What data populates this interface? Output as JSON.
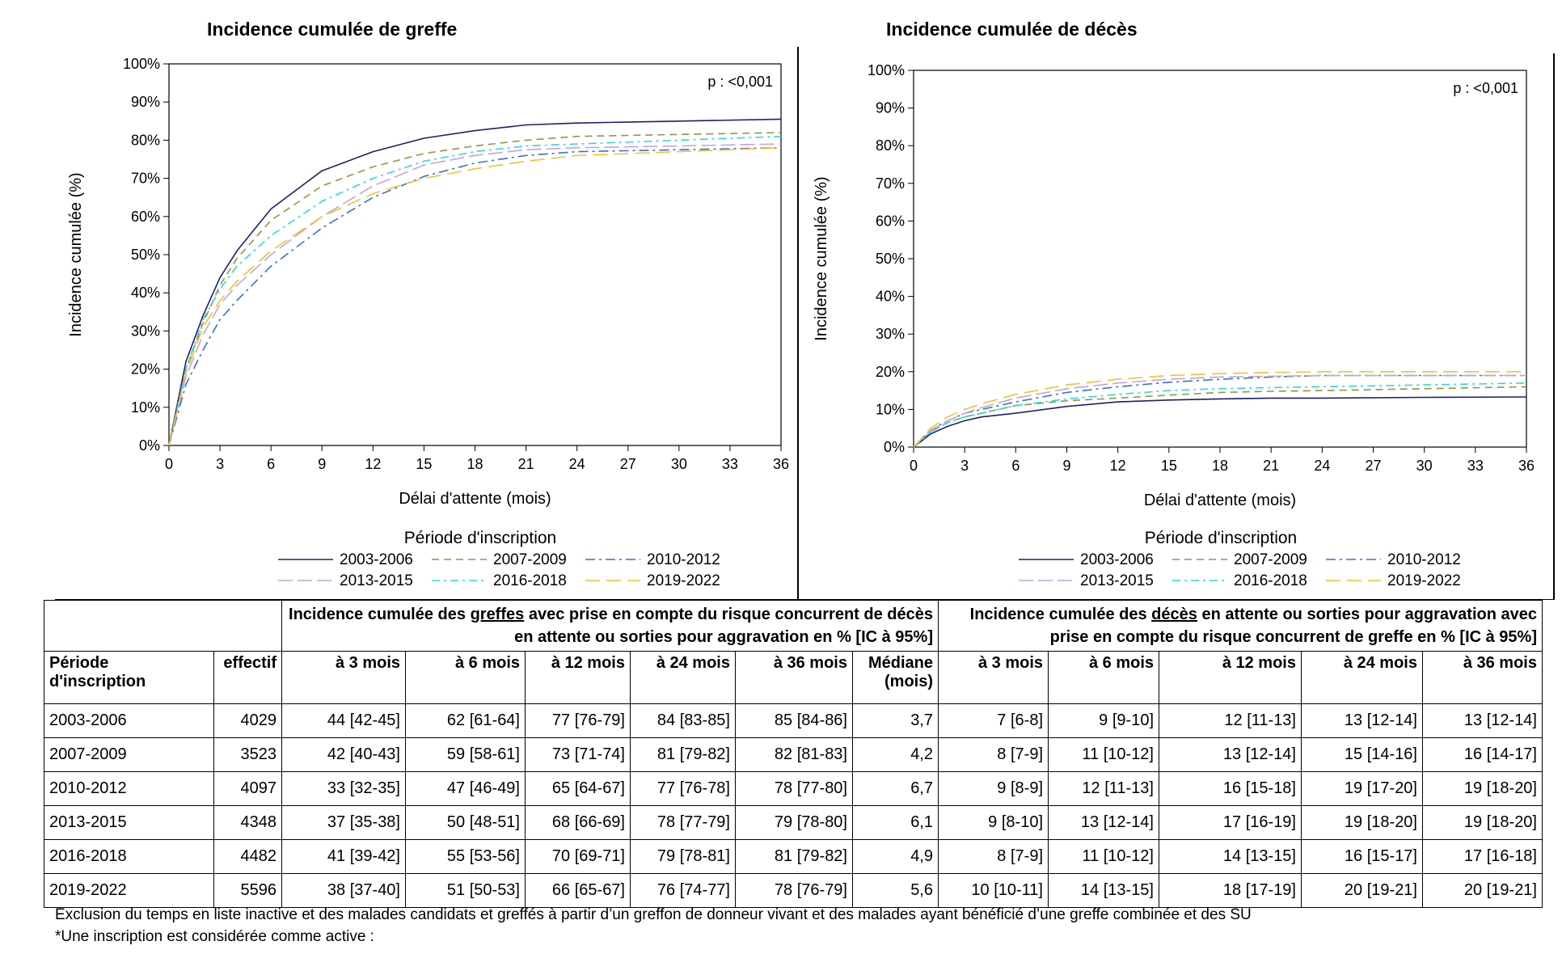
{
  "panels": [
    {
      "id": "greffe",
      "title": "Incidence cumulée de greffe",
      "pvalue": "p : <0,001",
      "ylabel": "Incidence cumulée (%)",
      "xlabel": "Délai d'attente (mois)",
      "legend_title": "Période d'inscription"
    },
    {
      "id": "deces",
      "title": "Incidence cumulée de décès",
      "pvalue": "p : <0,001",
      "ylabel": "Incidence cumulée (%)",
      "xlabel": "Délai d'attente (mois)",
      "legend_title": "Période d'inscription"
    }
  ],
  "chart_data": [
    {
      "type": "line",
      "title": "Incidence cumulée de greffe",
      "xlabel": "Délai d'attente (mois)",
      "ylabel": "Incidence cumulée (%)",
      "xlim": [
        0,
        36
      ],
      "ylim": [
        0,
        100
      ],
      "xticks": [
        "0",
        "3",
        "6",
        "9",
        "12",
        "15",
        "18",
        "21",
        "24",
        "27",
        "30",
        "33",
        "36"
      ],
      "yticks": [
        "0%",
        "10%",
        "20%",
        "30%",
        "40%",
        "50%",
        "60%",
        "70%",
        "80%",
        "90%",
        "100%"
      ],
      "grid": false,
      "legend_placement": "bottom",
      "x": [
        0,
        1,
        2,
        3,
        4,
        6,
        9,
        12,
        15,
        18,
        21,
        24,
        30,
        36
      ],
      "series": [
        {
          "name": "2003-2006",
          "values": [
            0,
            22,
            34,
            44,
            51,
            62,
            72,
            77,
            80.5,
            82.5,
            84,
            84.5,
            85,
            85.5
          ]
        },
        {
          "name": "2007-2009",
          "values": [
            0,
            20,
            32,
            42,
            49,
            59,
            68,
            73,
            76.5,
            78.5,
            80,
            81,
            81.5,
            82
          ]
        },
        {
          "name": "2010-2012",
          "values": [
            0,
            16,
            25,
            33,
            38,
            47,
            57,
            65,
            70.5,
            74,
            76,
            77,
            77.5,
            78
          ]
        },
        {
          "name": "2013-2015",
          "values": [
            0,
            18,
            29,
            37,
            42,
            50,
            60,
            68,
            73.5,
            76,
            77.5,
            78,
            78.5,
            79
          ]
        },
        {
          "name": "2016-2018",
          "values": [
            0,
            20,
            33,
            41,
            47,
            55,
            64,
            70,
            74.5,
            77,
            78.5,
            79,
            80,
            81
          ]
        },
        {
          "name": "2019-2022",
          "values": [
            0,
            19,
            31,
            38,
            43,
            51,
            60,
            66,
            70,
            72.5,
            74.5,
            76,
            77,
            78
          ]
        }
      ]
    },
    {
      "type": "line",
      "title": "Incidence cumulée de décès",
      "xlabel": "Délai d'attente (mois)",
      "ylabel": "Incidence cumulée (%)",
      "xlim": [
        0,
        36
      ],
      "ylim": [
        0,
        100
      ],
      "xticks": [
        "0",
        "3",
        "6",
        "9",
        "12",
        "15",
        "18",
        "21",
        "24",
        "27",
        "30",
        "33",
        "36"
      ],
      "yticks": [
        "0%",
        "10%",
        "20%",
        "30%",
        "40%",
        "50%",
        "60%",
        "70%",
        "80%",
        "90%",
        "100%"
      ],
      "grid": false,
      "legend_placement": "bottom",
      "x": [
        0,
        1,
        2,
        3,
        4,
        6,
        9,
        12,
        15,
        18,
        21,
        24,
        30,
        36
      ],
      "series": [
        {
          "name": "2003-2006",
          "values": [
            0,
            3.5,
            5.5,
            7,
            8,
            9,
            10.8,
            12,
            12.5,
            12.8,
            13,
            13,
            13.2,
            13.3
          ]
        },
        {
          "name": "2007-2009",
          "values": [
            0,
            4,
            6.5,
            8,
            9,
            11,
            12.3,
            13,
            13.8,
            14.5,
            14.8,
            15,
            15.5,
            16
          ]
        },
        {
          "name": "2010-2012",
          "values": [
            0,
            4.5,
            7,
            9,
            10,
            12,
            14.5,
            16,
            17.2,
            18,
            18.6,
            19,
            19,
            19
          ]
        },
        {
          "name": "2013-2015",
          "values": [
            0,
            4.5,
            7,
            9,
            10.5,
            13,
            15.5,
            17,
            18,
            18.6,
            18.8,
            19,
            19,
            19
          ]
        },
        {
          "name": "2016-2018",
          "values": [
            0,
            4,
            6.5,
            8,
            9,
            11,
            12.8,
            14,
            15,
            15.5,
            15.8,
            16,
            16.5,
            17
          ]
        },
        {
          "name": "2019-2022",
          "values": [
            0,
            5,
            8,
            10,
            11.5,
            14,
            16.5,
            18,
            19,
            19.5,
            19.8,
            20,
            20,
            20
          ]
        }
      ]
    }
  ],
  "legend": {
    "title": "Période d'inscription",
    "entries": [
      {
        "label": "2003-2006",
        "color": "#1f1f6e",
        "dash": ""
      },
      {
        "label": "2007-2009",
        "color": "#8c9a3c",
        "dash": "9,6"
      },
      {
        "label": "2010-2012",
        "color": "#3a6fd1",
        "dash": "12,5,3,5"
      },
      {
        "label": "2013-2015",
        "color": "#c4a3d9",
        "dash": "18,6"
      },
      {
        "label": "2016-2018",
        "color": "#2ed6e6",
        "dash": "10,5,3,5"
      },
      {
        "label": "2019-2022",
        "color": "#f2c230",
        "dash": "18,8"
      }
    ]
  },
  "table": {
    "group_greffe": {
      "pre": "Incidence cumulée des ",
      "word": "greffes",
      "post": " avec prise en compte du risque concurrent de décès en attente ou sorties pour aggravation en % [IC à 95%]"
    },
    "group_deces": {
      "pre": "Incidence cumulée des ",
      "word": "décès",
      "post": " en attente ou sorties pour aggravation avec prise en compte du risque concurrent de greffe en % [IC à 95%]"
    },
    "headers": [
      "Période d'inscription",
      "effectif",
      "à 3 mois",
      "à 6 mois",
      "à 12 mois",
      "à 24 mois",
      "à 36 mois",
      "Médiane (mois)",
      "à 3 mois",
      "à 6 mois",
      "à 12 mois",
      "à 24 mois",
      "à 36 mois"
    ],
    "rows": [
      [
        "2003-2006",
        "4029",
        "44 [42-45]",
        "62 [61-64]",
        "77 [76-79]",
        "84 [83-85]",
        "85 [84-86]",
        "3,7",
        "7 [6-8]",
        "9 [9-10]",
        "12 [11-13]",
        "13 [12-14]",
        "13 [12-14]"
      ],
      [
        "2007-2009",
        "3523",
        "42 [40-43]",
        "59 [58-61]",
        "73 [71-74]",
        "81 [79-82]",
        "82 [81-83]",
        "4,2",
        "8 [7-9]",
        "11 [10-12]",
        "13 [12-14]",
        "15 [14-16]",
        "16 [14-17]"
      ],
      [
        "2010-2012",
        "4097",
        "33 [32-35]",
        "47 [46-49]",
        "65 [64-67]",
        "77 [76-78]",
        "78 [77-80]",
        "6,7",
        "9 [8-9]",
        "12 [11-13]",
        "16 [15-18]",
        "19 [17-20]",
        "19 [18-20]"
      ],
      [
        "2013-2015",
        "4348",
        "37 [35-38]",
        "50 [48-51]",
        "68 [66-69]",
        "78 [77-79]",
        "79 [78-80]",
        "6,1",
        "9 [8-10]",
        "13 [12-14]",
        "17 [16-19]",
        "19 [18-20]",
        "19 [18-20]"
      ],
      [
        "2016-2018",
        "4482",
        "41 [39-42]",
        "55 [53-56]",
        "70 [69-71]",
        "79 [78-81]",
        "81 [79-82]",
        "4,9",
        "8 [7-9]",
        "11 [10-12]",
        "14 [13-15]",
        "16 [15-17]",
        "17 [16-18]"
      ],
      [
        "2019-2022",
        "5596",
        "38 [37-40]",
        "51 [50-53]",
        "66 [65-67]",
        "76 [74-77]",
        "78 [76-79]",
        "5,6",
        "10 [10-11]",
        "14 [13-15]",
        "18 [17-19]",
        "20 [19-21]",
        "20 [19-21]"
      ]
    ]
  },
  "notes": [
    "Exclusion du temps en liste inactive et des malades candidats et greffés à partir d’un greffon de donneur vivant et des malades ayant bénéficié d’une greffe combinée et des SU",
    "*Une inscription est considérée comme active :"
  ]
}
